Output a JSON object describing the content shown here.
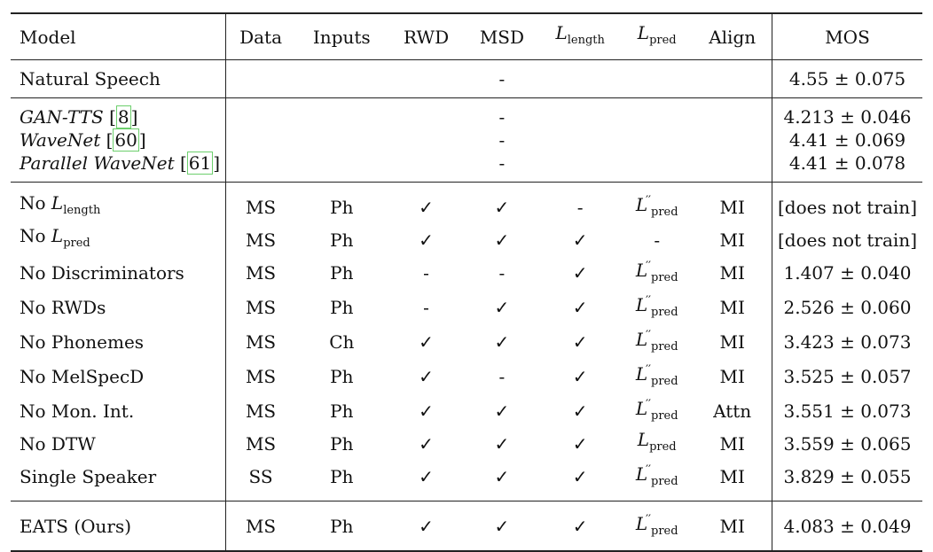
{
  "header": {
    "model": "Model",
    "data": "Data",
    "inputs": "Inputs",
    "rwd": "RWD",
    "msd": "MSD",
    "l_length": {
      "base": "L",
      "sub": "length"
    },
    "l_pred": {
      "base": "L",
      "sub": "pred"
    },
    "align": "Align",
    "mos": "MOS"
  },
  "symbols": {
    "check": "✓",
    "dash": "-",
    "pm": "±",
    "double_prime": "′′"
  },
  "natural": {
    "model": "Natural Speech",
    "mid": "-",
    "mos": "4.55 ± 0.075"
  },
  "baselines": [
    {
      "name": "GAN-TTS",
      "ref": "8",
      "mid": "-",
      "mos": "4.213 ± 0.046"
    },
    {
      "name": "WaveNet",
      "ref": "60",
      "mid": "-",
      "mos": "4.41 ± 0.069"
    },
    {
      "name": "Parallel WaveNet",
      "ref": "61",
      "mid": "-",
      "mos": "4.41 ± 0.078"
    }
  ],
  "ablations": [
    {
      "prefix": "No",
      "model_sub": "length",
      "data": "MS",
      "inputs": "Ph",
      "rwd": "✓",
      "msd": "✓",
      "l_length": "-",
      "l_pred": "L''pred",
      "align": "MI",
      "mos": "[does not train]"
    },
    {
      "prefix": "No",
      "model_sub": "pred",
      "data": "MS",
      "inputs": "Ph",
      "rwd": "✓",
      "msd": "✓",
      "l_length": "✓",
      "l_pred": "-",
      "align": "MI",
      "mos": "[does not train]"
    },
    {
      "model": "No Discriminators",
      "data": "MS",
      "inputs": "Ph",
      "rwd": "-",
      "msd": "-",
      "l_length": "✓",
      "l_pred": "L''pred",
      "align": "MI",
      "mos": "1.407 ± 0.040"
    },
    {
      "model": "No RWDs",
      "data": "MS",
      "inputs": "Ph",
      "rwd": "-",
      "msd": "✓",
      "l_length": "✓",
      "l_pred": "L''pred",
      "align": "MI",
      "mos": "2.526 ± 0.060"
    },
    {
      "model": "No Phonemes",
      "data": "MS",
      "inputs": "Ch",
      "rwd": "✓",
      "msd": "✓",
      "l_length": "✓",
      "l_pred": "L''pred",
      "align": "MI",
      "mos": "3.423 ± 0.073"
    },
    {
      "model": "No MelSpecD",
      "data": "MS",
      "inputs": "Ph",
      "rwd": "✓",
      "msd": "-",
      "l_length": "✓",
      "l_pred": "L''pred",
      "align": "MI",
      "mos": "3.525 ± 0.057"
    },
    {
      "model": "No Mon. Int.",
      "data": "MS",
      "inputs": "Ph",
      "rwd": "✓",
      "msd": "✓",
      "l_length": "✓",
      "l_pred": "L''pred",
      "align": "Attn",
      "mos": "3.551 ± 0.073"
    },
    {
      "model": "No DTW",
      "data": "MS",
      "inputs": "Ph",
      "rwd": "✓",
      "msd": "✓",
      "l_length": "✓",
      "l_pred": "Lpred",
      "align": "MI",
      "mos": "3.559 ± 0.065"
    },
    {
      "model": "Single Speaker",
      "data": "SS",
      "inputs": "Ph",
      "rwd": "✓",
      "msd": "✓",
      "l_length": "✓",
      "l_pred": "L''pred",
      "align": "MI",
      "mos": "3.829 ± 0.055"
    }
  ],
  "ours": {
    "model": "EATS (Ours)",
    "data": "MS",
    "inputs": "Ph",
    "rwd": "✓",
    "msd": "✓",
    "l_length": "✓",
    "l_pred": "L''pred",
    "align": "MI",
    "mos": "4.083 ± 0.049"
  }
}
